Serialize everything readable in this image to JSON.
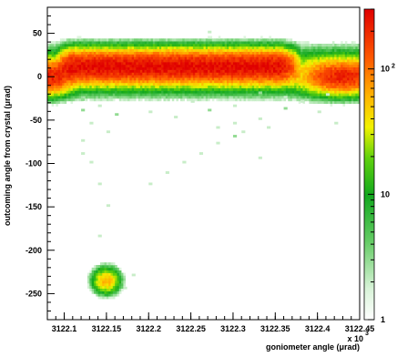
{
  "chart_data": {
    "type": "heatmap",
    "title": "",
    "xlabel": "goniometer angle (μrad)",
    "ylabel": "outcoming angle from crystal (μrad)",
    "x_multiplier_label": "x 10",
    "x_multiplier_exp": "3",
    "xlim": [
      3122.08,
      3122.45
    ],
    "ylim": [
      -280,
      80
    ],
    "x_ticks": [
      3122.1,
      3122.15,
      3122.2,
      3122.25,
      3122.3,
      3122.35,
      3122.4,
      3122.45
    ],
    "x_tick_labels": [
      "3122.1",
      "3122.15",
      "3122.2",
      "3122.25",
      "3122.3",
      "3122.35",
      "3122.4",
      "3122.45"
    ],
    "y_ticks": [
      -250,
      -200,
      -150,
      -100,
      -50,
      0,
      50
    ],
    "y_tick_labels": [
      "-250",
      "-200",
      "-150",
      "-100",
      "-50",
      "0",
      "50"
    ],
    "colorbar": {
      "scale": "log",
      "range": [
        1,
        300
      ],
      "ticks": [
        1,
        10,
        100
      ],
      "tick_labels": [
        {
          "base": "1",
          "exp": ""
        },
        {
          "base": "10",
          "exp": ""
        },
        {
          "base": "10",
          "exp": "2"
        }
      ]
    },
    "grid": false,
    "features": [
      {
        "name": "channeling band",
        "x_range": [
          3122.09,
          3122.38
        ],
        "y_center": 12,
        "y_width": 14,
        "peak": 250
      },
      {
        "name": "unchanneled band",
        "x_range": [
          3122.08,
          3122.45
        ],
        "y_center": 0,
        "y_width": 14,
        "peak": 200
      },
      {
        "name": "volume reflection cluster",
        "x_center": 3122.15,
        "y_center": -235,
        "peak": 60
      }
    ]
  }
}
